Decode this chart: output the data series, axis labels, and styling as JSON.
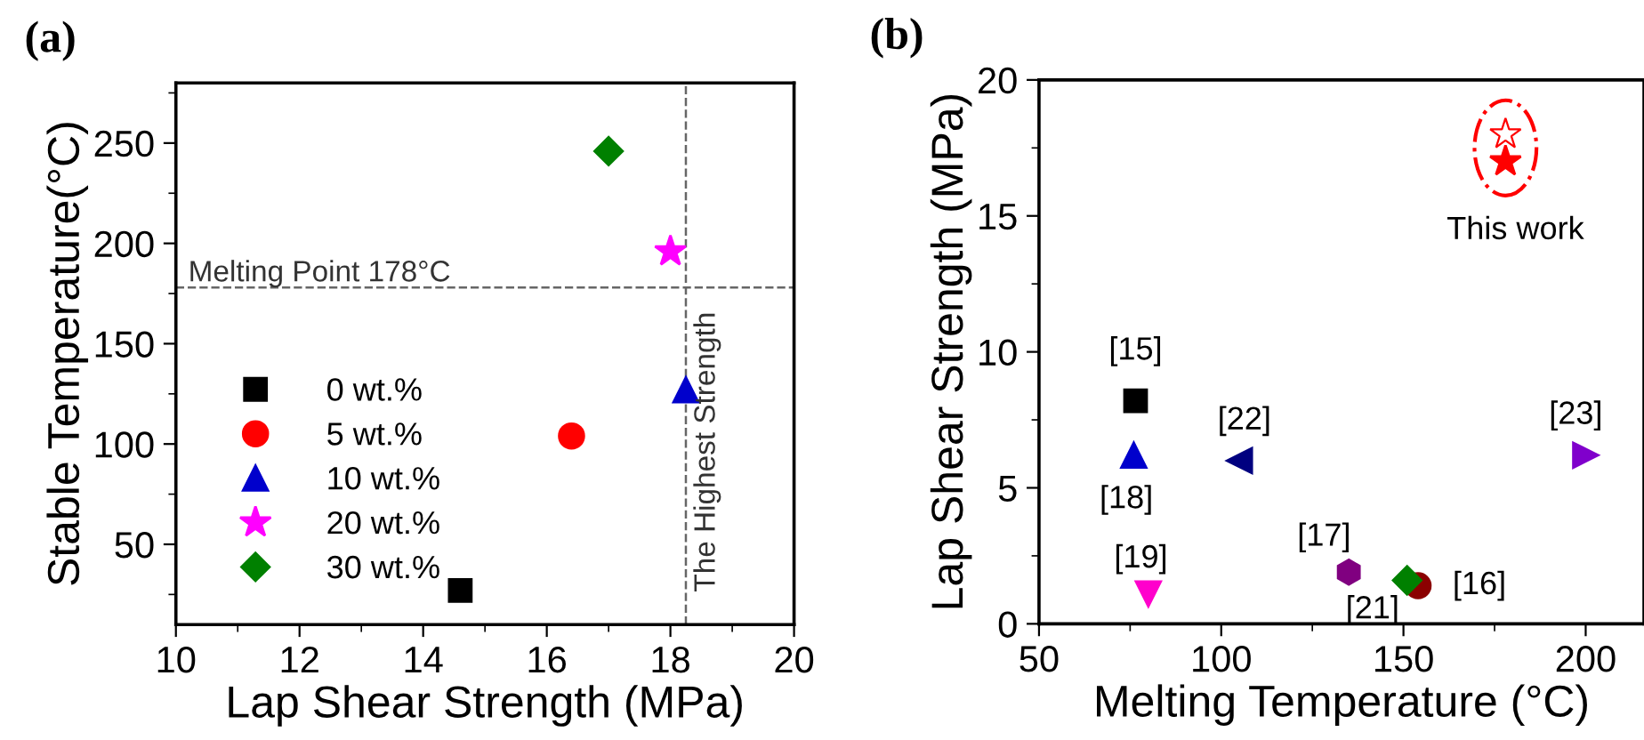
{
  "chart_data": [
    {
      "type": "scatter",
      "title": "(a)",
      "xlabel": "Lap Shear Strength (MPa)",
      "ylabel": "Stable Temperature(°C)",
      "xlim": [
        10,
        20
      ],
      "ylim": [
        10,
        280
      ],
      "xticks": [
        10,
        12,
        14,
        16,
        18,
        20
      ],
      "yticks": [
        50,
        100,
        150,
        200,
        250
      ],
      "grid": false,
      "legend": "bottom left",
      "series": [
        {
          "name": "0 wt.%",
          "color": "#000000",
          "marker": "square",
          "x": [
            14.6
          ],
          "values": [
            27
          ]
        },
        {
          "name": "5 wt.%",
          "color": "#ff0000",
          "marker": "circle",
          "x": [
            16.4
          ],
          "values": [
            104
          ]
        },
        {
          "name": "10 wt.%",
          "color": "#0000cc",
          "marker": "triangle",
          "x": [
            18.25
          ],
          "values": [
            127
          ]
        },
        {
          "name": "20 wt.%",
          "color": "#ff00ff",
          "marker": "star",
          "x": [
            18.0
          ],
          "values": [
            196
          ]
        },
        {
          "name": "30 wt.%",
          "color": "#008000",
          "marker": "diamond",
          "x": [
            17.0
          ],
          "values": [
            246
          ]
        }
      ],
      "ref_lines": [
        {
          "axis": "y",
          "value": 178,
          "label": "Melting Point 178°C",
          "color": "#666666",
          "line_style": "dashed"
        },
        {
          "axis": "x",
          "value": 18.25,
          "label": "The Highest Strength",
          "color": "#666666",
          "line_style": "dashed"
        }
      ]
    },
    {
      "type": "scatter",
      "title": "(b)",
      "xlabel": "Melting Temperature (°C)",
      "ylabel": "Lap Shear Strength (MPa)",
      "xlim": [
        50,
        216
      ],
      "ylim": [
        0,
        20
      ],
      "xticks": [
        50,
        100,
        150,
        200
      ],
      "yticks": [
        0,
        5,
        10,
        15,
        20
      ],
      "grid": false,
      "legend": false,
      "series": [
        {
          "color": "#000000",
          "marker": "square",
          "x": [
            76.5
          ],
          "values": [
            8.2
          ]
        },
        {
          "color": "#0000cc",
          "marker": "triangle",
          "x": [
            76
          ],
          "values": [
            6.2
          ]
        },
        {
          "color": "#000080",
          "x": [
            105
          ],
          "values": [
            6.0
          ]
        },
        {
          "color": "#8000cc",
          "x": [
            200
          ],
          "values": [
            6.2
          ]
        },
        {
          "color": "#ff00cc",
          "x": [
            80
          ],
          "values": [
            1.1
          ]
        },
        {
          "color": "#800080",
          "x": [
            135
          ],
          "values": [
            1.9
          ]
        },
        {
          "color": "#8b0000",
          "marker": "circle",
          "x": [
            154
          ],
          "values": [
            1.4
          ]
        },
        {
          "color": "#008000",
          "marker": "diamond",
          "x": [
            151
          ],
          "values": [
            1.6
          ]
        },
        {
          "color": "#ff0000",
          "marker": "star",
          "x": [
            178
          ],
          "values": [
            18.0
          ]
        },
        {
          "color": "#ff0000",
          "marker": "star",
          "x": [
            178
          ],
          "values": [
            17.0
          ]
        }
      ],
      "annotations": [
        {
          "text": "[15]",
          "x": 76.5,
          "y": 8.2
        },
        {
          "text": "[18]",
          "x": 76,
          "y": 6.2
        },
        {
          "text": "[22]",
          "x": 105,
          "y": 6.0
        },
        {
          "text": "[23]",
          "x": 200,
          "y": 6.2
        },
        {
          "text": "[19]",
          "x": 80,
          "y": 1.1
        },
        {
          "text": "[17]",
          "x": 135,
          "y": 1.9
        },
        {
          "text": "[16]",
          "x": 154,
          "y": 1.4
        },
        {
          "text": "[21]",
          "x": 151,
          "y": 1.6
        },
        {
          "text": "This work",
          "x": 178,
          "y": 17.0
        }
      ]
    }
  ]
}
